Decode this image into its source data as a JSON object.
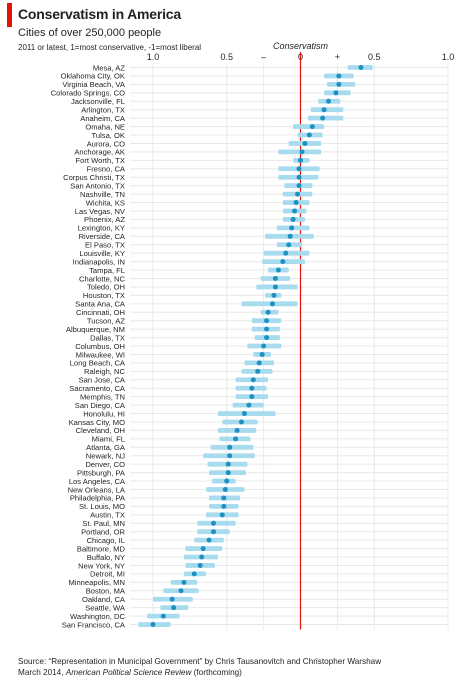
{
  "header": {
    "title": "Conservatism in America",
    "subtitle": "Cities of over 250,000 people",
    "note": "2011 or latest, 1=most conservative, -1=most liberal"
  },
  "source": {
    "line1": "Source: “Representation in Municipal Government” by Chris Tausanovitch and Christopher Warshaw",
    "line2_prefix": "March 2014,",
    "line2_journal": "American Political Science Review",
    "line2_suffix": "(forthcoming)"
  },
  "colors": {
    "dot": "#1e91c2",
    "ci": "#a9dbef",
    "zero_line": "#e3120b",
    "grid": "#e8e8e8",
    "accent": "#e3120b"
  },
  "chart_data": {
    "type": "scatter",
    "title": "Conservatism",
    "xlim": [
      -1,
      1
    ],
    "tick_labels": [
      {
        "value": -1,
        "text": "1.0"
      },
      {
        "value": -0.5,
        "text": "0.5"
      },
      {
        "value": -0.25,
        "text": "–"
      },
      {
        "value": 0,
        "text": "0"
      },
      {
        "value": 0.25,
        "text": "+"
      },
      {
        "value": 0.5,
        "text": "0.5"
      },
      {
        "value": 1,
        "text": "1.0"
      }
    ],
    "grid": true,
    "reference_line": 0,
    "cities": [
      "Mesa, AZ",
      "Oklahoma City, OK",
      "Virginia Beach, VA",
      "Colorado Springs, CO",
      "Jacksonville, FL",
      "Arlington, TX",
      "Anaheim, CA",
      "Omaha, NE",
      "Tulsa, OK",
      "Aurora, CO",
      "Anchorage, AK",
      "Fort Worth, TX",
      "Fresno, CA",
      "Corpus Christi, TX",
      "San Antonio, TX",
      "Nashville, TN",
      "Wichita, KS",
      "Las Vegas, NV",
      "Phoenix, AZ",
      "Lexington, KY",
      "Riverside, CA",
      "El Paso, TX",
      "Louisville, KY",
      "Indianapolis, IN",
      "Tampa, FL",
      "Charlotte, NC",
      "Toledo, OH",
      "Houston, TX",
      "Santa Ana, CA",
      "Cincinnati, OH",
      "Tucson, AZ",
      "Albuquerque, NM",
      "Dallas, TX",
      "Columbus, OH",
      "Milwaukee, WI",
      "Long Beach, CA",
      "Raleigh, NC",
      "San Jose, CA",
      "Sacramento, CA",
      "Memphis, TN",
      "San Diego, CA",
      "Honolulu, HI",
      "Kansas City, MO",
      "Cleveland, OH",
      "Miami, FL",
      "Atlanta, GA",
      "Newark, NJ",
      "Denver, CO",
      "Pittsburgh, PA",
      "Los Angeles, CA",
      "New Orleans, LA",
      "Philadelphia, PA",
      "St. Louis, MO",
      "Austin, TX",
      "St. Paul, MN",
      "Portland, OR",
      "Chicago, IL",
      "Baltimore, MD",
      "Buffalo, NY",
      "New York, NY",
      "Detroit, MI",
      "Minneapolis, MN",
      "Boston, MA",
      "Oakland, CA",
      "Seattle, WA",
      "Washington, DC",
      "San Francisco, CA"
    ],
    "values": [
      0.41,
      0.26,
      0.26,
      0.24,
      0.19,
      0.16,
      0.15,
      0.08,
      0.06,
      0.03,
      0.01,
      0.0,
      -0.01,
      -0.01,
      -0.01,
      -0.02,
      -0.03,
      -0.04,
      -0.05,
      -0.06,
      -0.07,
      -0.08,
      -0.1,
      -0.12,
      -0.15,
      -0.17,
      -0.17,
      -0.18,
      -0.19,
      -0.22,
      -0.23,
      -0.23,
      -0.23,
      -0.25,
      -0.26,
      -0.28,
      -0.29,
      -0.32,
      -0.33,
      -0.33,
      -0.35,
      -0.38,
      -0.4,
      -0.43,
      -0.44,
      -0.48,
      -0.48,
      -0.49,
      -0.49,
      -0.5,
      -0.51,
      -0.52,
      -0.52,
      -0.53,
      -0.59,
      -0.59,
      -0.62,
      -0.66,
      -0.67,
      -0.68,
      -0.72,
      -0.79,
      -0.81,
      -0.87,
      -0.86,
      -0.93,
      -1.0
    ],
    "ci_low": [
      0.32,
      0.16,
      0.18,
      0.16,
      0.12,
      0.07,
      0.05,
      -0.05,
      -0.02,
      -0.08,
      -0.15,
      -0.05,
      -0.15,
      -0.15,
      -0.11,
      -0.12,
      -0.12,
      -0.12,
      -0.12,
      -0.16,
      -0.24,
      -0.16,
      -0.25,
      -0.26,
      -0.22,
      -0.27,
      -0.3,
      -0.24,
      -0.4,
      -0.27,
      -0.33,
      -0.33,
      -0.31,
      -0.36,
      -0.32,
      -0.38,
      -0.4,
      -0.44,
      -0.44,
      -0.44,
      -0.46,
      -0.56,
      -0.53,
      -0.56,
      -0.55,
      -0.61,
      -0.66,
      -0.63,
      -0.62,
      -0.6,
      -0.64,
      -0.62,
      -0.62,
      -0.64,
      -0.7,
      -0.7,
      -0.72,
      -0.78,
      -0.79,
      -0.78,
      -0.79,
      -0.88,
      -0.93,
      -1.0,
      -0.95,
      -1.04,
      -1.1
    ],
    "ci_high": [
      0.49,
      0.36,
      0.37,
      0.34,
      0.27,
      0.29,
      0.29,
      0.16,
      0.15,
      0.14,
      0.14,
      0.06,
      0.13,
      0.12,
      0.08,
      0.08,
      0.06,
      0.04,
      0.03,
      0.06,
      0.09,
      0.01,
      0.06,
      0.03,
      -0.08,
      -0.07,
      -0.02,
      -0.13,
      -0.02,
      -0.15,
      -0.13,
      -0.14,
      -0.14,
      -0.13,
      -0.2,
      -0.18,
      -0.19,
      -0.22,
      -0.23,
      -0.22,
      -0.25,
      -0.17,
      -0.29,
      -0.3,
      -0.34,
      -0.32,
      -0.31,
      -0.36,
      -0.37,
      -0.44,
      -0.38,
      -0.41,
      -0.42,
      -0.42,
      -0.44,
      -0.48,
      -0.52,
      -0.53,
      -0.56,
      -0.58,
      -0.64,
      -0.7,
      -0.69,
      -0.73,
      -0.76,
      -0.82,
      -0.88
    ]
  }
}
